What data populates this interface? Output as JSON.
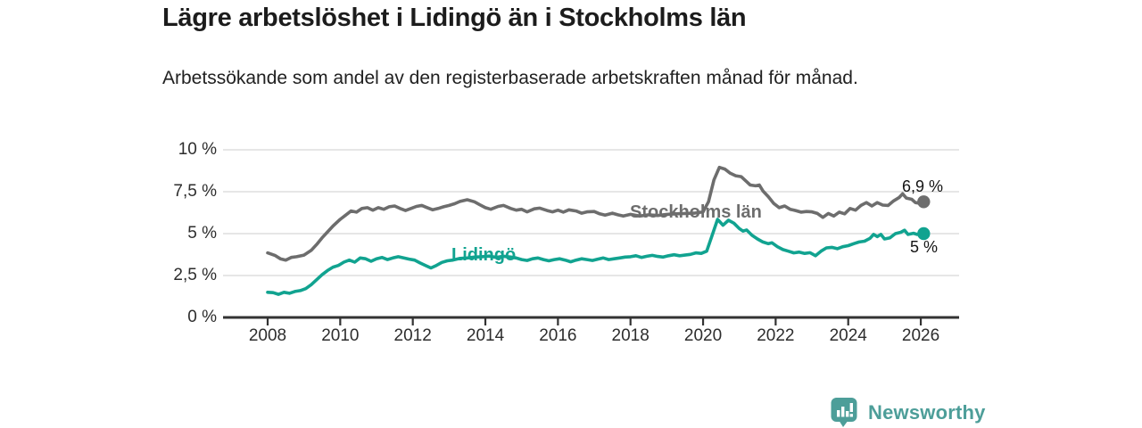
{
  "header": {
    "title": "Lägre arbetslöshet i Lidingö än i Stockholms län",
    "subtitle": "Arbetssökande som andel av den registerbaserade arbetskraften månad för månad."
  },
  "footer": {
    "brand": "Newsworthy",
    "brand_color": "#4d9e99",
    "logo_icon": "bar-chart-speech-bubble-icon"
  },
  "chart_data": {
    "type": "line",
    "title": "Lägre arbetslöshet i Lidingö än i Stockholms län",
    "xlabel": "",
    "ylabel": "",
    "unit": "%",
    "grid": true,
    "gridline_color": "#d8d8d8",
    "axis_color": "#333333",
    "x_axis": {
      "range_years": [
        2006.8,
        2027.05
      ],
      "ticks": [
        2008,
        2010,
        2012,
        2014,
        2016,
        2018,
        2020,
        2022,
        2024,
        2026
      ],
      "tick_labels": [
        "2008",
        "2010",
        "2012",
        "2014",
        "2016",
        "2018",
        "2020",
        "2022",
        "2024",
        "2026"
      ]
    },
    "y_axis": {
      "range": [
        0,
        10
      ],
      "ticks": [
        0,
        2.5,
        5,
        7.5,
        10
      ],
      "tick_labels": [
        "0 %",
        "2,5 %",
        "5 %",
        "7,5 %",
        "10 %"
      ]
    },
    "series": [
      {
        "name": "Stockholms län",
        "color": "#6d6d6d",
        "end_label": "6,9 %",
        "end_value": 6.9,
        "points": [
          [
            2008.0,
            3.85
          ],
          [
            2008.2,
            3.7
          ],
          [
            2008.35,
            3.5
          ],
          [
            2008.5,
            3.42
          ],
          [
            2008.65,
            3.58
          ],
          [
            2008.8,
            3.62
          ],
          [
            2009.0,
            3.72
          ],
          [
            2009.2,
            4.0
          ],
          [
            2009.35,
            4.35
          ],
          [
            2009.5,
            4.75
          ],
          [
            2009.65,
            5.1
          ],
          [
            2009.8,
            5.45
          ],
          [
            2010.0,
            5.85
          ],
          [
            2010.15,
            6.1
          ],
          [
            2010.3,
            6.35
          ],
          [
            2010.45,
            6.28
          ],
          [
            2010.6,
            6.5
          ],
          [
            2010.75,
            6.55
          ],
          [
            2010.9,
            6.4
          ],
          [
            2011.05,
            6.55
          ],
          [
            2011.2,
            6.45
          ],
          [
            2011.35,
            6.6
          ],
          [
            2011.5,
            6.65
          ],
          [
            2011.65,
            6.5
          ],
          [
            2011.8,
            6.38
          ],
          [
            2011.95,
            6.5
          ],
          [
            2012.1,
            6.62
          ],
          [
            2012.25,
            6.68
          ],
          [
            2012.4,
            6.55
          ],
          [
            2012.55,
            6.42
          ],
          [
            2012.7,
            6.5
          ],
          [
            2012.85,
            6.6
          ],
          [
            2013.0,
            6.68
          ],
          [
            2013.15,
            6.78
          ],
          [
            2013.3,
            6.92
          ],
          [
            2013.5,
            7.02
          ],
          [
            2013.7,
            6.9
          ],
          [
            2013.85,
            6.72
          ],
          [
            2014.0,
            6.55
          ],
          [
            2014.15,
            6.45
          ],
          [
            2014.35,
            6.62
          ],
          [
            2014.5,
            6.68
          ],
          [
            2014.7,
            6.5
          ],
          [
            2014.85,
            6.4
          ],
          [
            2015.0,
            6.45
          ],
          [
            2015.15,
            6.3
          ],
          [
            2015.35,
            6.48
          ],
          [
            2015.5,
            6.52
          ],
          [
            2015.7,
            6.38
          ],
          [
            2015.85,
            6.3
          ],
          [
            2016.0,
            6.4
          ],
          [
            2016.15,
            6.28
          ],
          [
            2016.3,
            6.42
          ],
          [
            2016.5,
            6.35
          ],
          [
            2016.65,
            6.22
          ],
          [
            2016.8,
            6.3
          ],
          [
            2017.0,
            6.32
          ],
          [
            2017.15,
            6.18
          ],
          [
            2017.3,
            6.1
          ],
          [
            2017.5,
            6.22
          ],
          [
            2017.65,
            6.12
          ],
          [
            2017.8,
            6.05
          ],
          [
            2018.0,
            6.15
          ],
          [
            2018.25,
            6.05
          ],
          [
            2018.5,
            6.12
          ],
          [
            2018.75,
            6.08
          ],
          [
            2019.0,
            6.15
          ],
          [
            2019.25,
            6.18
          ],
          [
            2019.5,
            6.2
          ],
          [
            2019.75,
            6.22
          ],
          [
            2020.0,
            6.3
          ],
          [
            2020.15,
            6.9
          ],
          [
            2020.3,
            8.2
          ],
          [
            2020.45,
            8.95
          ],
          [
            2020.6,
            8.85
          ],
          [
            2020.75,
            8.6
          ],
          [
            2020.9,
            8.45
          ],
          [
            2021.05,
            8.4
          ],
          [
            2021.2,
            8.1
          ],
          [
            2021.3,
            7.9
          ],
          [
            2021.45,
            7.85
          ],
          [
            2021.55,
            7.9
          ],
          [
            2021.65,
            7.55
          ],
          [
            2021.8,
            7.2
          ],
          [
            2021.95,
            6.8
          ],
          [
            2022.1,
            6.55
          ],
          [
            2022.25,
            6.65
          ],
          [
            2022.4,
            6.45
          ],
          [
            2022.55,
            6.38
          ],
          [
            2022.7,
            6.28
          ],
          [
            2022.85,
            6.32
          ],
          [
            2023.0,
            6.3
          ],
          [
            2023.15,
            6.2
          ],
          [
            2023.3,
            5.97
          ],
          [
            2023.45,
            6.2
          ],
          [
            2023.6,
            6.05
          ],
          [
            2023.75,
            6.28
          ],
          [
            2023.9,
            6.18
          ],
          [
            2024.05,
            6.5
          ],
          [
            2024.2,
            6.4
          ],
          [
            2024.35,
            6.68
          ],
          [
            2024.5,
            6.85
          ],
          [
            2024.65,
            6.65
          ],
          [
            2024.8,
            6.85
          ],
          [
            2024.95,
            6.7
          ],
          [
            2025.1,
            6.68
          ],
          [
            2025.25,
            6.95
          ],
          [
            2025.4,
            7.15
          ],
          [
            2025.5,
            7.38
          ],
          [
            2025.6,
            7.12
          ],
          [
            2025.75,
            7.05
          ],
          [
            2025.85,
            6.85
          ],
          [
            2026.0,
            6.8
          ],
          [
            2026.08,
            6.9
          ]
        ]
      },
      {
        "name": "Lidingö",
        "color": "#11a390",
        "end_label": "5 %",
        "end_value": 5.0,
        "points": [
          [
            2008.0,
            1.5
          ],
          [
            2008.15,
            1.48
          ],
          [
            2008.3,
            1.38
          ],
          [
            2008.45,
            1.5
          ],
          [
            2008.6,
            1.44
          ],
          [
            2008.75,
            1.55
          ],
          [
            2008.9,
            1.6
          ],
          [
            2009.05,
            1.72
          ],
          [
            2009.2,
            1.95
          ],
          [
            2009.35,
            2.25
          ],
          [
            2009.5,
            2.55
          ],
          [
            2009.65,
            2.8
          ],
          [
            2009.8,
            3.0
          ],
          [
            2009.95,
            3.1
          ],
          [
            2010.1,
            3.3
          ],
          [
            2010.25,
            3.42
          ],
          [
            2010.4,
            3.3
          ],
          [
            2010.55,
            3.55
          ],
          [
            2010.7,
            3.5
          ],
          [
            2010.85,
            3.35
          ],
          [
            2011.0,
            3.5
          ],
          [
            2011.15,
            3.58
          ],
          [
            2011.3,
            3.45
          ],
          [
            2011.45,
            3.55
          ],
          [
            2011.6,
            3.62
          ],
          [
            2011.75,
            3.55
          ],
          [
            2011.9,
            3.48
          ],
          [
            2012.05,
            3.42
          ],
          [
            2012.2,
            3.25
          ],
          [
            2012.35,
            3.1
          ],
          [
            2012.5,
            2.95
          ],
          [
            2012.65,
            3.1
          ],
          [
            2012.8,
            3.28
          ],
          [
            2012.95,
            3.38
          ],
          [
            2013.1,
            3.42
          ],
          [
            2013.3,
            3.52
          ],
          [
            2013.5,
            3.55
          ],
          [
            2013.7,
            3.6
          ],
          [
            2013.9,
            3.62
          ],
          [
            2014.1,
            3.66
          ],
          [
            2014.3,
            3.58
          ],
          [
            2014.5,
            3.65
          ],
          [
            2014.7,
            3.6
          ],
          [
            2014.85,
            3.55
          ],
          [
            2015.0,
            3.45
          ],
          [
            2015.15,
            3.4
          ],
          [
            2015.3,
            3.5
          ],
          [
            2015.45,
            3.55
          ],
          [
            2015.6,
            3.45
          ],
          [
            2015.75,
            3.38
          ],
          [
            2015.9,
            3.45
          ],
          [
            2016.05,
            3.5
          ],
          [
            2016.2,
            3.42
          ],
          [
            2016.35,
            3.32
          ],
          [
            2016.5,
            3.42
          ],
          [
            2016.65,
            3.5
          ],
          [
            2016.8,
            3.45
          ],
          [
            2016.95,
            3.4
          ],
          [
            2017.1,
            3.48
          ],
          [
            2017.25,
            3.55
          ],
          [
            2017.4,
            3.45
          ],
          [
            2017.55,
            3.5
          ],
          [
            2017.7,
            3.55
          ],
          [
            2017.85,
            3.6
          ],
          [
            2018.0,
            3.62
          ],
          [
            2018.15,
            3.68
          ],
          [
            2018.3,
            3.58
          ],
          [
            2018.45,
            3.65
          ],
          [
            2018.6,
            3.7
          ],
          [
            2018.75,
            3.64
          ],
          [
            2018.9,
            3.6
          ],
          [
            2019.05,
            3.68
          ],
          [
            2019.2,
            3.74
          ],
          [
            2019.35,
            3.68
          ],
          [
            2019.5,
            3.72
          ],
          [
            2019.65,
            3.76
          ],
          [
            2019.8,
            3.85
          ],
          [
            2019.95,
            3.82
          ],
          [
            2020.1,
            3.95
          ],
          [
            2020.25,
            4.9
          ],
          [
            2020.4,
            5.85
          ],
          [
            2020.55,
            5.5
          ],
          [
            2020.7,
            5.8
          ],
          [
            2020.85,
            5.62
          ],
          [
            2021.0,
            5.3
          ],
          [
            2021.1,
            5.15
          ],
          [
            2021.2,
            5.22
          ],
          [
            2021.35,
            4.9
          ],
          [
            2021.5,
            4.68
          ],
          [
            2021.65,
            4.5
          ],
          [
            2021.8,
            4.4
          ],
          [
            2021.9,
            4.45
          ],
          [
            2022.05,
            4.22
          ],
          [
            2022.2,
            4.05
          ],
          [
            2022.35,
            3.95
          ],
          [
            2022.5,
            3.85
          ],
          [
            2022.65,
            3.9
          ],
          [
            2022.8,
            3.82
          ],
          [
            2022.95,
            3.86
          ],
          [
            2023.1,
            3.68
          ],
          [
            2023.25,
            3.95
          ],
          [
            2023.4,
            4.15
          ],
          [
            2023.55,
            4.18
          ],
          [
            2023.7,
            4.1
          ],
          [
            2023.85,
            4.22
          ],
          [
            2024.0,
            4.28
          ],
          [
            2024.15,
            4.4
          ],
          [
            2024.3,
            4.5
          ],
          [
            2024.45,
            4.55
          ],
          [
            2024.6,
            4.72
          ],
          [
            2024.7,
            4.95
          ],
          [
            2024.8,
            4.82
          ],
          [
            2024.9,
            4.95
          ],
          [
            2025.0,
            4.68
          ],
          [
            2025.15,
            4.75
          ],
          [
            2025.3,
            5.0
          ],
          [
            2025.45,
            5.08
          ],
          [
            2025.55,
            5.2
          ],
          [
            2025.65,
            4.95
          ],
          [
            2025.8,
            5.02
          ],
          [
            2025.9,
            4.95
          ],
          [
            2026.08,
            5.0
          ]
        ]
      }
    ]
  }
}
